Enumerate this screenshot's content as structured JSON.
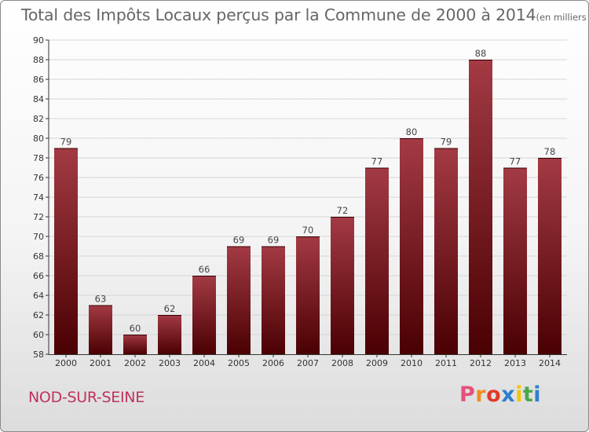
{
  "title": {
    "main": "Total des Impôts Locaux perçus par la Commune de 2000 à 2014",
    "unit": "(en milliers d'€)"
  },
  "commune": "NOD-SUR-SEINE",
  "logo": {
    "text": "Proxiti",
    "colors": [
      "#e6507a",
      "#f08c1e",
      "#e03a2a",
      "#2c7fd0",
      "#f5c400",
      "#4aa84a",
      "#2c7fd0"
    ]
  },
  "colors": {
    "bar_top": "#a33a44",
    "bar_bottom": "#4a0002",
    "axis": "#333333",
    "grid": "#d6d6d6",
    "title": "#666666",
    "commune": "#c0335e"
  },
  "chart_data": {
    "type": "bar",
    "categories": [
      "2000",
      "2001",
      "2002",
      "2003",
      "2004",
      "2005",
      "2006",
      "2007",
      "2008",
      "2009",
      "2010",
      "2011",
      "2012",
      "2013",
      "2014"
    ],
    "values": [
      79,
      63,
      60,
      62,
      66,
      69,
      69,
      70,
      72,
      77,
      80,
      79,
      88,
      77,
      78
    ],
    "ylim": [
      58,
      90
    ],
    "yticks": [
      58,
      60,
      62,
      64,
      66,
      68,
      70,
      72,
      74,
      76,
      78,
      80,
      82,
      84,
      86,
      88,
      90
    ],
    "grid": true
  }
}
